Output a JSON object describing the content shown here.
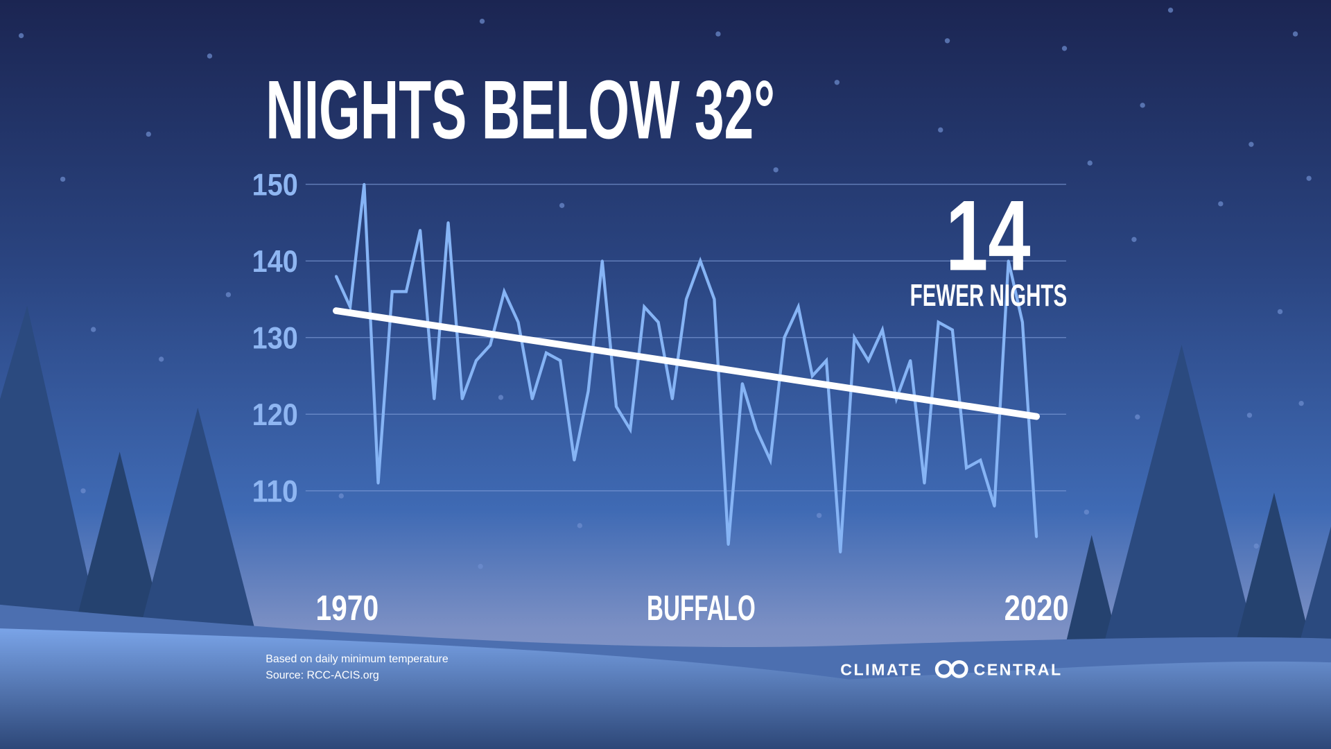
{
  "title": "NIGHTS BELOW 32°",
  "callout": {
    "number": "14",
    "text": "FEWER NIGHTS"
  },
  "location": "BUFFALO",
  "footnote": {
    "line1": "Based on daily minimum temperature",
    "line2": "Source: RCC-ACIS.org"
  },
  "brand": {
    "left": "CLIMATE",
    "right": "CENTRAL"
  },
  "colors": {
    "line": "#86b4f5",
    "trend": "#ffffff",
    "grid": "#7c9ad6",
    "tick": "#8fb6f2"
  },
  "chart_data": {
    "type": "line",
    "title": "NIGHTS BELOW 32°",
    "x_start_label": "1970",
    "x_end_label": "2020",
    "xlim": [
      1970,
      2020
    ],
    "ylim": [
      100,
      152
    ],
    "yticks": [
      110,
      120,
      130,
      140,
      150
    ],
    "grid": true,
    "x": [
      1970,
      1971,
      1972,
      1973,
      1974,
      1975,
      1976,
      1977,
      1978,
      1979,
      1980,
      1981,
      1982,
      1983,
      1984,
      1985,
      1986,
      1987,
      1988,
      1989,
      1990,
      1991,
      1992,
      1993,
      1994,
      1995,
      1996,
      1997,
      1998,
      1999,
      2000,
      2001,
      2002,
      2003,
      2004,
      2005,
      2006,
      2007,
      2008,
      2009,
      2010,
      2011,
      2012,
      2013,
      2014,
      2015,
      2016,
      2017,
      2018,
      2019,
      2020
    ],
    "values": [
      138,
      134,
      150,
      111,
      136,
      136,
      144,
      122,
      145,
      122,
      127,
      129,
      136,
      132,
      122,
      128,
      127,
      114,
      123,
      140,
      121,
      118,
      134,
      132,
      122,
      135,
      140,
      135,
      103,
      124,
      118,
      114,
      130,
      134,
      125,
      127,
      102,
      130,
      127,
      131,
      122,
      127,
      111,
      132,
      131,
      113,
      114,
      108,
      140,
      132,
      104
    ],
    "trend": {
      "start": 133.5,
      "end": 119.7
    }
  }
}
